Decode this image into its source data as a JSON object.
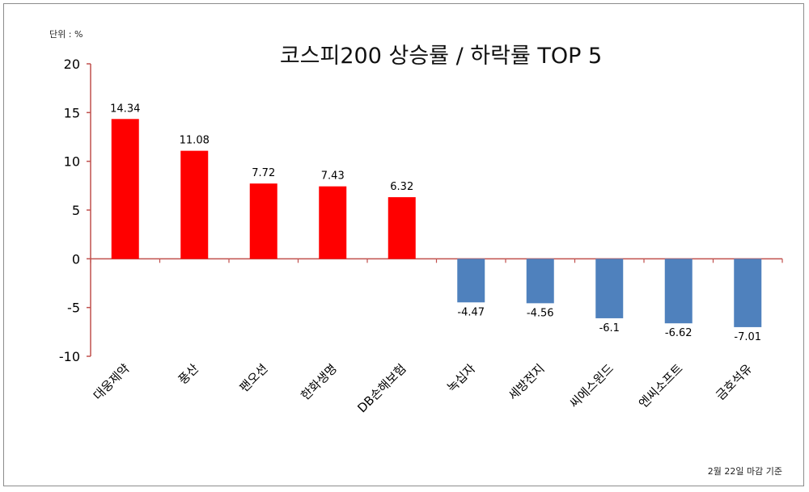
{
  "chart_data": {
    "type": "bar",
    "title": "코스피200 상승률 / 하락률  TOP 5",
    "unit_label": "단위 : %",
    "footnote": "2월 22일 마감 기준",
    "categories": [
      "대웅제약",
      "풍산",
      "팬오션",
      "한화생명",
      "DB손해보험",
      "녹십자",
      "세방전지",
      "씨에스윈드",
      "엔씨소프트",
      "금호석유"
    ],
    "values": [
      14.34,
      11.08,
      7.72,
      7.43,
      6.32,
      -4.47,
      -4.56,
      -6.1,
      -6.62,
      -7.01
    ],
    "value_labels": [
      "14.34",
      "11.08",
      "7.72",
      "7.43",
      "6.32",
      "-4.47",
      "-4.56",
      "-6.1",
      "-6.62",
      "-7.01"
    ],
    "ylim": [
      -10,
      20
    ],
    "yticks": [
      20,
      15,
      10,
      5,
      0,
      -5,
      -10
    ],
    "grid": false,
    "colors": {
      "positive": "#ff0000",
      "negative": "#4f81bd",
      "axis": "#c0504d"
    }
  }
}
